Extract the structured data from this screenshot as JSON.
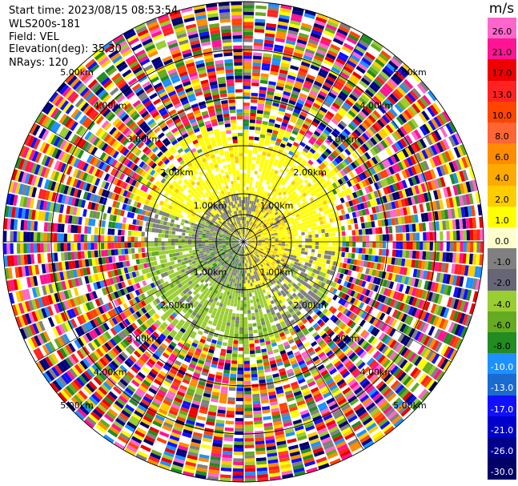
{
  "header": {
    "start_time": "Start time: 2023/08/15 08:53:54",
    "instrument": "WLS200s-181",
    "field": "Field: VEL",
    "elevation": "Elevation(deg): 35.30",
    "nrays": "NRays: 120"
  },
  "colorbar": {
    "unit": "m/s",
    "ticks": [
      "26.0",
      "21.0",
      "17.0",
      "13.0",
      "10.0",
      "8.0",
      "6.0",
      "4.0",
      "2.0",
      "1.0",
      "0.0",
      "-1.0",
      "-2.0",
      "-4.0",
      "-6.0",
      "-8.0",
      "-10.0",
      "-13.0",
      "-17.0",
      "-21.0",
      "-26.0",
      "-30.0"
    ],
    "colors": [
      "#ff66cc",
      "#ff1493",
      "#ee0000",
      "#ff2222",
      "#ff4500",
      "#ff6633",
      "#ff8c00",
      "#ffaa00",
      "#ffcc00",
      "#ffff00",
      "#ffffcc",
      "#808080",
      "#666677",
      "#9acd32",
      "#66aa22",
      "#228b22",
      "#1e90ff",
      "#1a6ad0",
      "#1010ff",
      "#0000cc",
      "#00008b",
      "#000066"
    ]
  },
  "chart_data": {
    "type": "heatmap",
    "title": "",
    "field": "VEL",
    "units": "m/s",
    "nrays": 120,
    "elevation_deg": 35.3,
    "range_ring_labels": [
      "1.00km",
      "2.00km",
      "3.00km",
      "4.00km",
      "5.00km"
    ],
    "value_range": [
      -30.0,
      26.0
    ],
    "description_of_pattern": "Inner disc (<~2 km): mixed positive (yellow, east & north) and negative (green, south-west) radial velocities with gray near-zero band; outer region noisy with full-range colors."
  }
}
